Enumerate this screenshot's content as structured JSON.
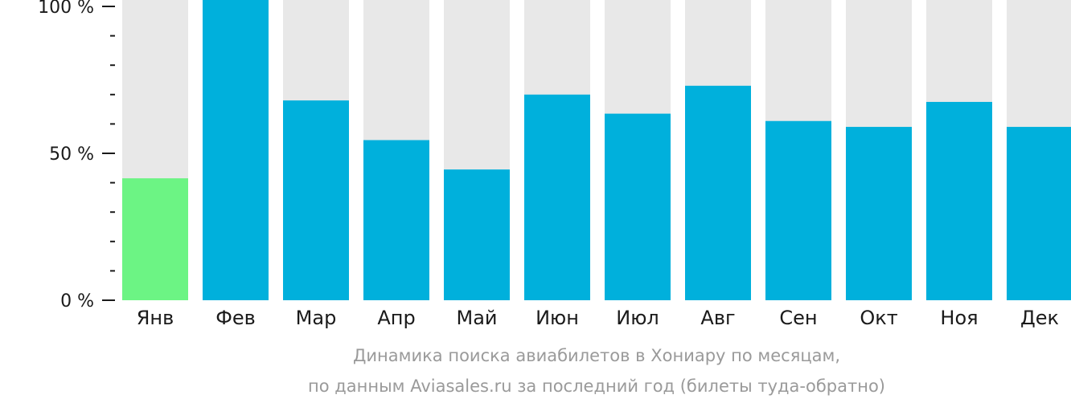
{
  "chart_data": {
    "type": "bar",
    "categories": [
      "Янв",
      "Фев",
      "Мар",
      "Апр",
      "Май",
      "Июн",
      "Июл",
      "Авг",
      "Сен",
      "Окт",
      "Ноя",
      "Дек"
    ],
    "values": [
      41.5,
      100,
      68,
      54.5,
      44.5,
      70,
      63.5,
      73,
      61,
      59,
      67.5,
      59
    ],
    "ylim": [
      0,
      100
    ],
    "yticks": [
      "0 %",
      "50 %",
      "100 %"
    ],
    "ytick_values": [
      0,
      50,
      100
    ],
    "caption_line1": "Динамика поиска авиабилетов в Хониару по месяцам,",
    "caption_line2": "по данным Aviasales.ru за последний год (билеты туда-обратно)",
    "colors": {
      "bar": "#00b0dc",
      "highlight": "#6cf484",
      "background": "#e8e8e8",
      "axis": "#1a1a1a"
    },
    "highlight_index": 0
  }
}
